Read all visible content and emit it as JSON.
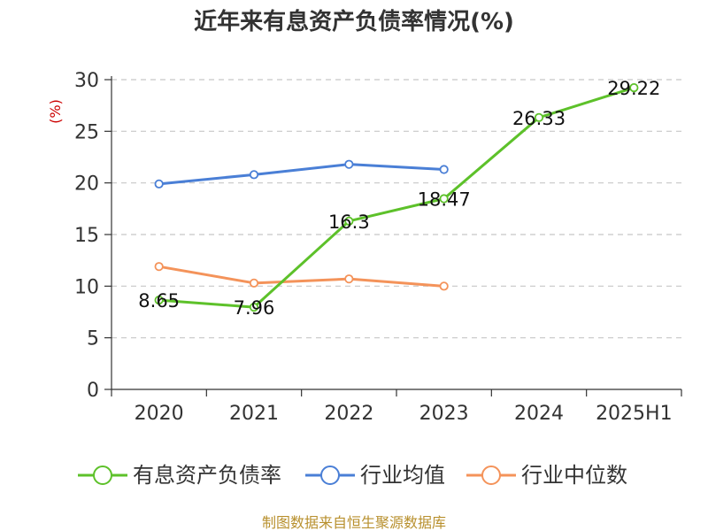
{
  "chart_data": {
    "type": "line",
    "title": "近年来有息资产负债率情况(%)",
    "ylabel": "(%)",
    "xlabel": "",
    "categories": [
      "2020",
      "2021",
      "2022",
      "2023",
      "2024",
      "2025H1"
    ],
    "ylim": [
      0,
      30
    ],
    "yticks": [
      0,
      5,
      10,
      15,
      20,
      25,
      30
    ],
    "grid": "horizontal-dashed",
    "legend_position": "bottom",
    "series": [
      {
        "name": "有息资产负债率",
        "color": "#5dc12a",
        "values": [
          8.65,
          7.96,
          16.3,
          18.47,
          26.33,
          29.22
        ],
        "data_labels": [
          "8.65",
          "7.96",
          "16.3",
          "18.47",
          "26.33",
          "29.22"
        ]
      },
      {
        "name": "行业均值",
        "color": "#4a7fd6",
        "values": [
          19.9,
          20.8,
          21.8,
          21.3,
          null,
          null
        ],
        "data_labels": []
      },
      {
        "name": "行业中位数",
        "color": "#f4935a",
        "values": [
          11.9,
          10.3,
          10.7,
          10.0,
          null,
          null
        ],
        "data_labels": []
      }
    ]
  },
  "footer": {
    "source": "制图数据来自恒生聚源数据库"
  }
}
